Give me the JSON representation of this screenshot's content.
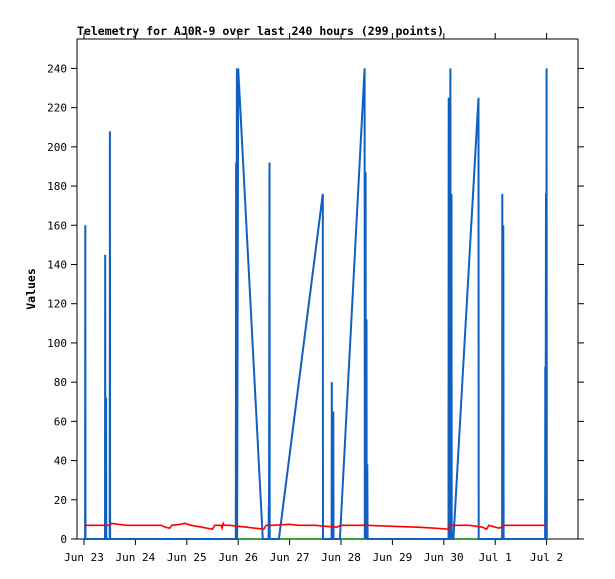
{
  "chart_data": {
    "type": "line",
    "title": "Telemetry for AJ0R-9 over last 240 hours (299 points)",
    "xlabel": "",
    "ylabel": "Values",
    "ylim": [
      0,
      255
    ],
    "xlim": [
      0,
      240
    ],
    "yticks": [
      0,
      20,
      40,
      60,
      80,
      100,
      120,
      140,
      160,
      180,
      200,
      220,
      240
    ],
    "x_tick_labels": [
      {
        "x": 0,
        "label": "Jun 23"
      },
      {
        "x": 24,
        "label": "Jun 24"
      },
      {
        "x": 48,
        "label": "Jun 25"
      },
      {
        "x": 72,
        "label": "Jun 26"
      },
      {
        "x": 96,
        "label": "Jun 27"
      },
      {
        "x": 120,
        "label": "Jun 28"
      },
      {
        "x": 144,
        "label": "Jun 29"
      },
      {
        "x": 168,
        "label": "Jun 30"
      },
      {
        "x": 192,
        "label": "Jul 1"
      },
      {
        "x": 216,
        "label": "Jul 2"
      }
    ],
    "grid": false,
    "legend": "none",
    "series": [
      {
        "color": "#1060c0",
        "points": [
          [
            0.5,
            0
          ],
          [
            0.6,
            160
          ],
          [
            0.7,
            0
          ],
          [
            9.8,
            0
          ],
          [
            9.9,
            145
          ],
          [
            10.0,
            0
          ],
          [
            10.3,
            72
          ],
          [
            10.4,
            0
          ],
          [
            12.0,
            0
          ],
          [
            12.1,
            208
          ],
          [
            12.2,
            0
          ],
          [
            70.9,
            0
          ],
          [
            71.0,
            192
          ],
          [
            71.1,
            0
          ],
          [
            71.4,
            240
          ],
          [
            71.5,
            0
          ],
          [
            72.0,
            240
          ],
          [
            83.5,
            0
          ],
          [
            86.2,
            0
          ],
          [
            86.3,
            17
          ],
          [
            86.4,
            0
          ],
          [
            86.6,
            192
          ],
          [
            86.7,
            0
          ],
          [
            91.0,
            0
          ],
          [
            111.5,
            176
          ],
          [
            111.6,
            0
          ],
          [
            115.6,
            0
          ],
          [
            115.7,
            80
          ],
          [
            115.8,
            0
          ],
          [
            116.4,
            65
          ],
          [
            116.5,
            0
          ],
          [
            119.5,
            0
          ],
          [
            131.0,
            240
          ],
          [
            131.1,
            0
          ],
          [
            131.5,
            187
          ],
          [
            131.6,
            0
          ],
          [
            131.9,
            112
          ],
          [
            132.0,
            0
          ],
          [
            132.3,
            38
          ],
          [
            132.4,
            0
          ],
          [
            170.2,
            0
          ],
          [
            170.3,
            225
          ],
          [
            170.4,
            0
          ],
          [
            171.1,
            240
          ],
          [
            171.2,
            0
          ],
          [
            171.6,
            176
          ],
          [
            171.7,
            0
          ],
          [
            172.5,
            0
          ],
          [
            184.2,
            225
          ],
          [
            184.3,
            0
          ],
          [
            195.2,
            0
          ],
          [
            195.3,
            176
          ],
          [
            195.4,
            0
          ],
          [
            195.8,
            160
          ],
          [
            195.9,
            0
          ],
          [
            215.3,
            0
          ],
          [
            215.4,
            88
          ],
          [
            215.5,
            0
          ],
          [
            215.7,
            176
          ],
          [
            215.8,
            0
          ],
          [
            216.0,
            240
          ],
          [
            216.1,
            0
          ]
        ]
      },
      {
        "color": "#ff0000",
        "points": [
          [
            0,
            7
          ],
          [
            12,
            7
          ],
          [
            13,
            8
          ],
          [
            16,
            7.5
          ],
          [
            20,
            7
          ],
          [
            28,
            7
          ],
          [
            36,
            7
          ],
          [
            38,
            6
          ],
          [
            40,
            5.5
          ],
          [
            41,
            7
          ],
          [
            45,
            7.5
          ],
          [
            47,
            8
          ],
          [
            50,
            7
          ],
          [
            55,
            6
          ],
          [
            60,
            5
          ],
          [
            61,
            7
          ],
          [
            64,
            7
          ],
          [
            64.5,
            5.5
          ],
          [
            65,
            8
          ],
          [
            65.5,
            7
          ],
          [
            68,
            7
          ],
          [
            72,
            6.5
          ],
          [
            76,
            6
          ],
          [
            80,
            5.5
          ],
          [
            84,
            5
          ],
          [
            85,
            7
          ],
          [
            88,
            7
          ],
          [
            96,
            7.5
          ],
          [
            100,
            7
          ],
          [
            108,
            7
          ],
          [
            113,
            6.5
          ],
          [
            118,
            6
          ],
          [
            120,
            7
          ],
          [
            132,
            7
          ],
          [
            144,
            6.5
          ],
          [
            156,
            6
          ],
          [
            164,
            5.5
          ],
          [
            170,
            5
          ],
          [
            171,
            7
          ],
          [
            176,
            7
          ],
          [
            180,
            7
          ],
          [
            186,
            6
          ],
          [
            188,
            5
          ],
          [
            189,
            7
          ],
          [
            192,
            6
          ],
          [
            194,
            5.5
          ],
          [
            196,
            7
          ],
          [
            204,
            7
          ],
          [
            214,
            7
          ],
          [
            216,
            7
          ]
        ]
      },
      {
        "color": "#008000",
        "points": [
          [
            0,
            0
          ],
          [
            216,
            0
          ]
        ]
      }
    ]
  }
}
